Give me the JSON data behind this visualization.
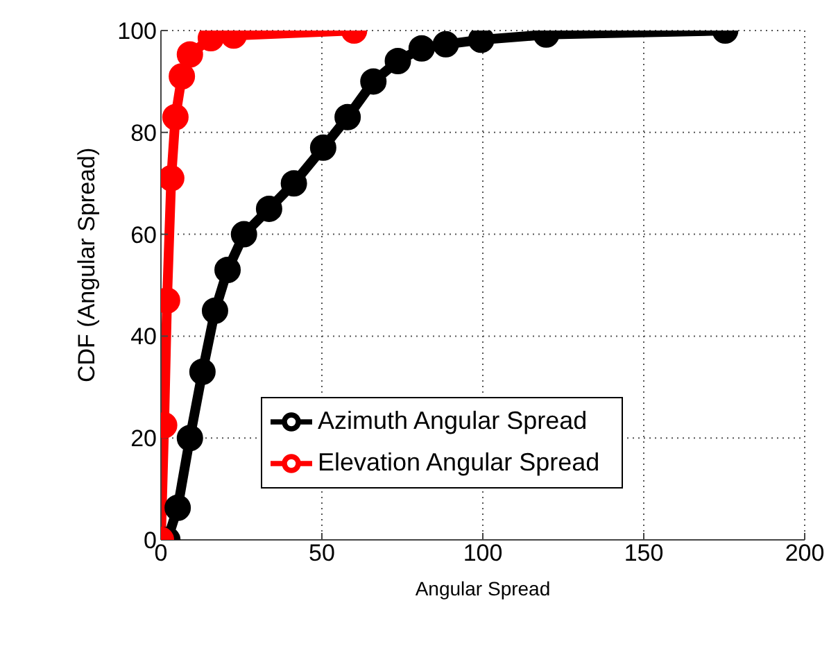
{
  "chart_data": {
    "type": "line",
    "xlabel": "Angular Spread",
    "ylabel": "CDF (Angular Spread)",
    "xlim": [
      0,
      200
    ],
    "xticks": [
      0,
      50,
      100,
      150,
      200
    ],
    "ylim": [
      0,
      100
    ],
    "yticks": [
      0,
      20,
      40,
      60,
      80,
      100
    ],
    "grid": true,
    "legend": "center",
    "marker": "circle",
    "line_style": "solid",
    "series": [
      {
        "name": "Azimuth Angular Spread",
        "color": "#000000",
        "x": [
          2,
          5.2,
          9,
          12.9,
          16.8,
          20.7,
          25.8,
          33.6,
          41.3,
          50.4,
          58,
          66,
          73.6,
          81,
          88.5,
          99.5,
          119.7,
          175.3
        ],
        "values": [
          0,
          6.3,
          20,
          33,
          45,
          53,
          60,
          65,
          70,
          77,
          83,
          90,
          94,
          96.5,
          97.3,
          98.2,
          99.2,
          100
        ]
      },
      {
        "name": "Elevation Angular Spread",
        "color": "#ff0000",
        "x": [
          0,
          1,
          1.9,
          3.2,
          4.5,
          6.5,
          9,
          15.5,
          22.6,
          60
        ],
        "values": [
          0,
          22.5,
          47,
          71,
          83,
          91,
          95.3,
          98.5,
          99,
          100
        ]
      }
    ]
  }
}
